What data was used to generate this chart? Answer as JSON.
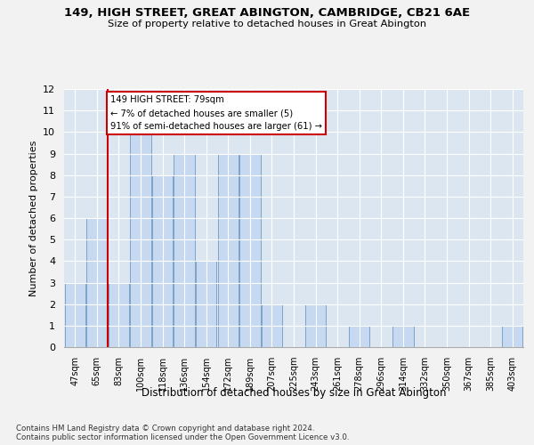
{
  "title1": "149, HIGH STREET, GREAT ABINGTON, CAMBRIDGE, CB21 6AE",
  "title2": "Size of property relative to detached houses in Great Abington",
  "xlabel": "Distribution of detached houses by size in Great Abington",
  "ylabel": "Number of detached properties",
  "categories": [
    "47sqm",
    "65sqm",
    "83sqm",
    "100sqm",
    "118sqm",
    "136sqm",
    "154sqm",
    "172sqm",
    "189sqm",
    "207sqm",
    "225sqm",
    "243sqm",
    "261sqm",
    "278sqm",
    "296sqm",
    "314sqm",
    "332sqm",
    "350sqm",
    "367sqm",
    "385sqm",
    "403sqm"
  ],
  "values": [
    3,
    6,
    3,
    10,
    8,
    9,
    4,
    9,
    9,
    2,
    0,
    2,
    0,
    1,
    0,
    1,
    0,
    0,
    0,
    0,
    1
  ],
  "bar_color": "#c6d9f0",
  "bar_edge_color": "#7099c2",
  "vline_x": 1.5,
  "vline_color": "#cc0000",
  "annotation_line1": "149 HIGH STREET: 79sqm",
  "annotation_line2": "← 7% of detached houses are smaller (5)",
  "annotation_line3": "91% of semi-detached houses are larger (61) →",
  "annotation_box_color": "#cc0000",
  "ylim": [
    0,
    12
  ],
  "yticks": [
    0,
    1,
    2,
    3,
    4,
    5,
    6,
    7,
    8,
    9,
    10,
    11,
    12
  ],
  "grid_color": "#ffffff",
  "bg_color": "#dce6f1",
  "fig_bg_color": "#f2f2f2",
  "footer1": "Contains HM Land Registry data © Crown copyright and database right 2024.",
  "footer2": "Contains public sector information licensed under the Open Government Licence v3.0."
}
